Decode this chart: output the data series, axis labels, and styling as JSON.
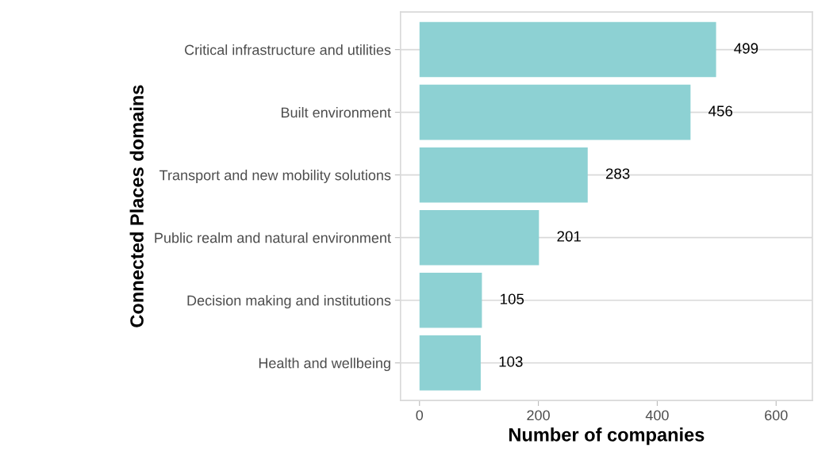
{
  "chart_data": {
    "type": "bar",
    "orientation": "horizontal",
    "xlabel": "Number of companies",
    "ylabel": "Connected Places domains",
    "categories": [
      "Critical infrastructure and utilities",
      "Built environment",
      "Transport and new mobility solutions",
      "Public realm and natural environment",
      "Decision making and institutions",
      "Health and wellbeing"
    ],
    "values": [
      499,
      456,
      283,
      201,
      105,
      103
    ],
    "color": "#8dd1d3",
    "xlim": [
      -32,
      661
    ],
    "xticks": [
      0,
      200,
      400,
      600
    ],
    "grid": "y",
    "data_labels": true
  }
}
